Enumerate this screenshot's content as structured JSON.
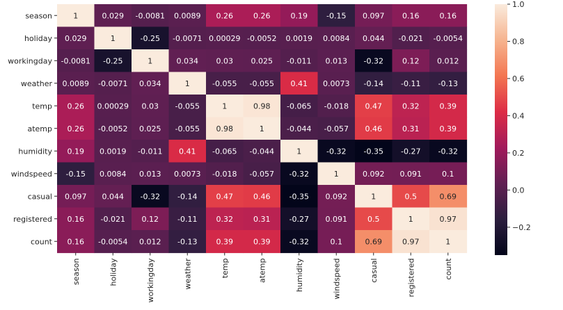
{
  "chart_data": {
    "type": "heatmap",
    "title": "",
    "xlabel": "",
    "ylabel": "",
    "row_labels": [
      "season",
      "holiday",
      "workingday",
      "weather",
      "temp",
      "atemp",
      "humidity",
      "windspeed",
      "casual",
      "registered",
      "count"
    ],
    "col_labels": [
      "season",
      "holiday",
      "workingday",
      "weather",
      "temp",
      "atemp",
      "humidity",
      "windspeed",
      "casual",
      "registered",
      "count"
    ],
    "values": [
      [
        1,
        0.029,
        -0.0081,
        0.0089,
        0.26,
        0.26,
        0.19,
        -0.15,
        0.097,
        0.16,
        0.16
      ],
      [
        0.029,
        1,
        -0.25,
        -0.0071,
        0.00029,
        -0.0052,
        0.0019,
        0.0084,
        0.044,
        -0.021,
        -0.0054
      ],
      [
        -0.0081,
        -0.25,
        1,
        0.034,
        0.03,
        0.025,
        -0.011,
        0.013,
        -0.32,
        0.12,
        0.012
      ],
      [
        0.0089,
        -0.0071,
        0.034,
        1,
        -0.055,
        -0.055,
        0.41,
        0.0073,
        -0.14,
        -0.11,
        -0.13
      ],
      [
        0.26,
        0.00029,
        0.03,
        -0.055,
        1,
        0.98,
        -0.065,
        -0.018,
        0.47,
        0.32,
        0.39
      ],
      [
        0.26,
        -0.0052,
        0.025,
        -0.055,
        0.98,
        1,
        -0.044,
        -0.057,
        0.46,
        0.31,
        0.39
      ],
      [
        0.19,
        0.0019,
        -0.011,
        0.41,
        -0.065,
        -0.044,
        1,
        -0.32,
        -0.35,
        -0.27,
        -0.32
      ],
      [
        -0.15,
        0.0084,
        0.013,
        0.0073,
        -0.018,
        -0.057,
        -0.32,
        1,
        0.092,
        0.091,
        0.1
      ],
      [
        0.097,
        0.044,
        -0.32,
        -0.14,
        0.47,
        0.46,
        -0.35,
        0.092,
        1,
        0.5,
        0.69
      ],
      [
        0.16,
        -0.021,
        0.12,
        -0.11,
        0.32,
        0.31,
        -0.27,
        0.091,
        0.5,
        1,
        0.97
      ],
      [
        0.16,
        -0.0054,
        0.012,
        -0.13,
        0.39,
        0.39,
        -0.32,
        0.1,
        0.69,
        0.97,
        1
      ]
    ],
    "value_labels": [
      [
        "1",
        "0.029",
        "-0.0081",
        "0.0089",
        "0.26",
        "0.26",
        "0.19",
        "-0.15",
        "0.097",
        "0.16",
        "0.16"
      ],
      [
        "0.029",
        "1",
        "-0.25",
        "-0.0071",
        "0.00029",
        "-0.0052",
        "0.0019",
        "0.0084",
        "0.044",
        "-0.021",
        "-0.0054"
      ],
      [
        "-0.0081",
        "-0.25",
        "1",
        "0.034",
        "0.03",
        "0.025",
        "-0.011",
        "0.013",
        "-0.32",
        "0.12",
        "0.012"
      ],
      [
        "0.0089",
        "-0.0071",
        "0.034",
        "1",
        "-0.055",
        "-0.055",
        "0.41",
        "0.0073",
        "-0.14",
        "-0.11",
        "-0.13"
      ],
      [
        "0.26",
        "0.00029",
        "0.03",
        "-0.055",
        "1",
        "0.98",
        "-0.065",
        "-0.018",
        "0.47",
        "0.32",
        "0.39"
      ],
      [
        "0.26",
        "-0.0052",
        "0.025",
        "-0.055",
        "0.98",
        "1",
        "-0.044",
        "-0.057",
        "0.46",
        "0.31",
        "0.39"
      ],
      [
        "0.19",
        "0.0019",
        "-0.011",
        "0.41",
        "-0.065",
        "-0.044",
        "1",
        "-0.32",
        "-0.35",
        "-0.27",
        "-0.32"
      ],
      [
        "-0.15",
        "0.0084",
        "0.013",
        "0.0073",
        "-0.018",
        "-0.057",
        "-0.32",
        "1",
        "0.092",
        "0.091",
        "0.1"
      ],
      [
        "0.097",
        "0.044",
        "-0.32",
        "-0.14",
        "0.47",
        "0.46",
        "-0.35",
        "0.092",
        "1",
        "0.5",
        "0.69"
      ],
      [
        "0.16",
        "-0.021",
        "0.12",
        "-0.11",
        "0.32",
        "0.31",
        "-0.27",
        "0.091",
        "0.5",
        "1",
        "0.97"
      ],
      [
        "0.16",
        "-0.0054",
        "0.012",
        "-0.13",
        "0.39",
        "0.39",
        "-0.32",
        "0.1",
        "0.69",
        "0.97",
        "1"
      ]
    ],
    "colorbar": {
      "vmin": -0.35,
      "vmax": 1.0,
      "ticks": [
        -0.2,
        0.0,
        0.2,
        0.4,
        0.6,
        0.8,
        1.0
      ],
      "tick_labels": [
        "−0.2",
        "0.0",
        "0.2",
        "0.4",
        "0.6",
        "0.8",
        "1.0"
      ],
      "colormap": "rocket",
      "stops": [
        "#03051a",
        "#2c1e3e",
        "#611f53",
        "#a11a5b",
        "#dd2c45",
        "#f37651",
        "#f6b48f",
        "#faebdd"
      ]
    }
  }
}
